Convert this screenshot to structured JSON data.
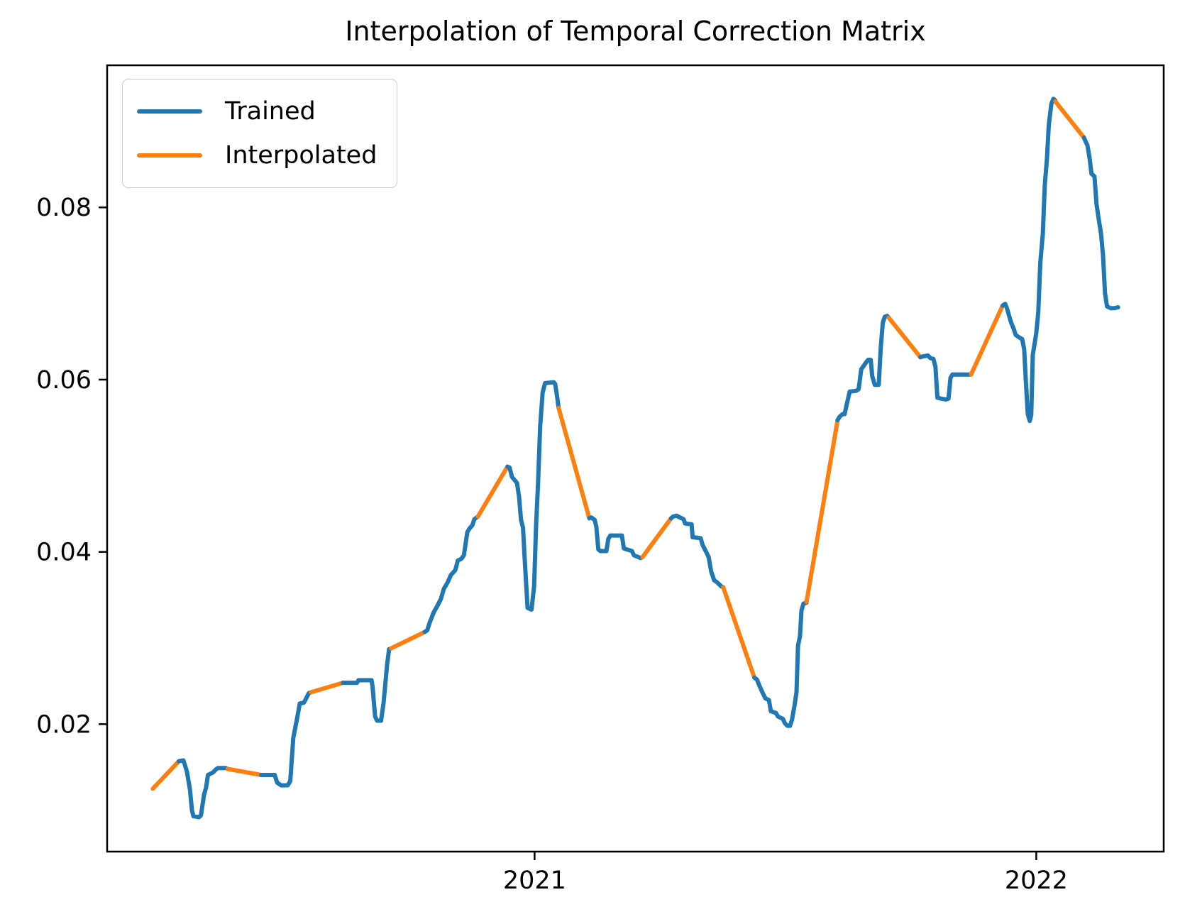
{
  "figure": {
    "title": "Interpolation of Temporal Correction Matrix",
    "background": "#ffffff",
    "spine_color": "#000000",
    "tick_label_color": "#000000"
  },
  "legend": {
    "position": "upper left",
    "items": [
      {
        "label": "Trained",
        "color": "#1f77b4"
      },
      {
        "label": "Interpolated",
        "color": "#ff7f0e"
      }
    ]
  },
  "chart_data": {
    "type": "line",
    "title": "Interpolation of Temporal Correction Matrix",
    "xlabel": "",
    "ylabel": "",
    "grid": false,
    "legend_position": "upper left",
    "xlim": [
      2020.148,
      2022.254
    ],
    "ylim": [
      0.0052,
      0.0965
    ],
    "xticks": {
      "values": [
        2021,
        2022
      ],
      "labels": [
        "2021",
        "2022"
      ]
    },
    "yticks": {
      "values": [
        0.02,
        0.04,
        0.06,
        0.08
      ],
      "labels": [
        "0.02",
        "0.04",
        "0.06",
        "0.08"
      ]
    },
    "series_colors": {
      "Trained": "#1f77b4",
      "Interpolated": "#ff7f0e"
    },
    "line_width": 6,
    "segments": [
      {
        "series": "Interpolated",
        "points": [
          [
            2020.239,
            0.0125
          ],
          [
            2020.291,
            0.0157
          ]
        ]
      },
      {
        "series": "Trained",
        "points": [
          [
            2020.291,
            0.0157
          ],
          [
            2020.3,
            0.0158
          ],
          [
            2020.307,
            0.0145
          ],
          [
            2020.313,
            0.0124
          ],
          [
            2020.317,
            0.01
          ],
          [
            2020.32,
            0.0093
          ],
          [
            2020.331,
            0.0092
          ],
          [
            2020.335,
            0.0094
          ],
          [
            2020.341,
            0.0118
          ],
          [
            2020.345,
            0.0126
          ],
          [
            2020.349,
            0.0141
          ],
          [
            2020.359,
            0.0144
          ],
          [
            2020.366,
            0.0148
          ],
          [
            2020.369,
            0.0149
          ],
          [
            2020.385,
            0.0149
          ],
          [
            2020.388,
            0.0148
          ]
        ]
      },
      {
        "series": "Interpolated",
        "points": [
          [
            2020.388,
            0.0148
          ],
          [
            2020.455,
            0.0141
          ]
        ]
      },
      {
        "series": "Trained",
        "points": [
          [
            2020.455,
            0.0141
          ],
          [
            2020.482,
            0.0141
          ],
          [
            2020.487,
            0.0132
          ],
          [
            2020.495,
            0.0129
          ],
          [
            2020.508,
            0.0129
          ],
          [
            2020.513,
            0.0134
          ],
          [
            2020.519,
            0.0184
          ],
          [
            2020.526,
            0.0205
          ],
          [
            2020.532,
            0.0224
          ],
          [
            2020.54,
            0.0225
          ],
          [
            2020.543,
            0.0228
          ],
          [
            2020.55,
            0.0236
          ],
          [
            2020.554,
            0.0237
          ]
        ]
      },
      {
        "series": "Interpolated",
        "points": [
          [
            2020.554,
            0.0237
          ],
          [
            2020.618,
            0.0248
          ]
        ]
      },
      {
        "series": "Trained",
        "points": [
          [
            2020.618,
            0.0248
          ],
          [
            2020.646,
            0.0248
          ],
          [
            2020.649,
            0.0251
          ],
          [
            2020.675,
            0.0251
          ],
          [
            2020.677,
            0.0244
          ],
          [
            2020.682,
            0.0209
          ],
          [
            2020.686,
            0.0204
          ],
          [
            2020.694,
            0.0204
          ],
          [
            2020.699,
            0.0225
          ],
          [
            2020.706,
            0.0269
          ],
          [
            2020.71,
            0.0287
          ],
          [
            2020.714,
            0.0288
          ]
        ]
      },
      {
        "series": "Interpolated",
        "points": [
          [
            2020.714,
            0.0288
          ],
          [
            2020.781,
            0.0307
          ]
        ]
      },
      {
        "series": "Trained",
        "points": [
          [
            2020.781,
            0.0307
          ],
          [
            2020.786,
            0.0309
          ],
          [
            2020.791,
            0.0318
          ],
          [
            2020.799,
            0.033
          ],
          [
            2020.805,
            0.0336
          ],
          [
            2020.813,
            0.0345
          ],
          [
            2020.819,
            0.0357
          ],
          [
            2020.827,
            0.0365
          ],
          [
            2020.833,
            0.0373
          ],
          [
            2020.842,
            0.0379
          ],
          [
            2020.847,
            0.039
          ],
          [
            2020.854,
            0.0392
          ],
          [
            2020.859,
            0.0396
          ],
          [
            2020.866,
            0.0423
          ],
          [
            2020.87,
            0.0427
          ],
          [
            2020.876,
            0.0431
          ],
          [
            2020.88,
            0.0438
          ],
          [
            2020.887,
            0.0441
          ]
        ]
      },
      {
        "series": "Interpolated",
        "points": [
          [
            2020.887,
            0.0441
          ],
          [
            2020.946,
            0.0499
          ]
        ]
      },
      {
        "series": "Trained",
        "points": [
          [
            2020.946,
            0.0499
          ],
          [
            2020.95,
            0.0498
          ],
          [
            2020.955,
            0.0487
          ],
          [
            2020.965,
            0.048
          ],
          [
            2020.969,
            0.0464
          ],
          [
            2020.973,
            0.0437
          ],
          [
            2020.977,
            0.0428
          ],
          [
            2020.98,
            0.0395
          ],
          [
            2020.986,
            0.0335
          ],
          [
            2020.994,
            0.0333
          ],
          [
            2020.999,
            0.036
          ],
          [
            2021.003,
            0.0431
          ],
          [
            2021.007,
            0.048
          ],
          [
            2021.011,
            0.0545
          ],
          [
            2021.016,
            0.0585
          ],
          [
            2021.021,
            0.0596
          ],
          [
            2021.038,
            0.0597
          ],
          [
            2021.041,
            0.0595
          ],
          [
            2021.045,
            0.058
          ],
          [
            2021.048,
            0.0567
          ]
        ]
      },
      {
        "series": "Interpolated",
        "points": [
          [
            2021.048,
            0.0567
          ],
          [
            2021.109,
            0.0439
          ]
        ]
      },
      {
        "series": "Trained",
        "points": [
          [
            2021.109,
            0.0439
          ],
          [
            2021.113,
            0.044
          ],
          [
            2021.12,
            0.0437
          ],
          [
            2021.123,
            0.0429
          ],
          [
            2021.127,
            0.0403
          ],
          [
            2021.131,
            0.0401
          ],
          [
            2021.143,
            0.0401
          ],
          [
            2021.147,
            0.0415
          ],
          [
            2021.151,
            0.0419
          ],
          [
            2021.174,
            0.0419
          ],
          [
            2021.178,
            0.0404
          ],
          [
            2021.194,
            0.0401
          ],
          [
            2021.198,
            0.0396
          ],
          [
            2021.211,
            0.0393
          ],
          [
            2021.215,
            0.0394
          ]
        ]
      },
      {
        "series": "Interpolated",
        "points": [
          [
            2021.215,
            0.0394
          ],
          [
            2021.272,
            0.0439
          ]
        ]
      },
      {
        "series": "Trained",
        "points": [
          [
            2021.272,
            0.0439
          ],
          [
            2021.276,
            0.0441
          ],
          [
            2021.283,
            0.0442
          ],
          [
            2021.293,
            0.0439
          ],
          [
            2021.297,
            0.0438
          ],
          [
            2021.3,
            0.0433
          ],
          [
            2021.313,
            0.0432
          ],
          [
            2021.315,
            0.0417
          ],
          [
            2021.331,
            0.0416
          ],
          [
            2021.335,
            0.0408
          ],
          [
            2021.342,
            0.04
          ],
          [
            2021.347,
            0.0394
          ],
          [
            2021.352,
            0.0377
          ],
          [
            2021.358,
            0.0367
          ],
          [
            2021.363,
            0.0365
          ],
          [
            2021.372,
            0.036
          ],
          [
            2021.376,
            0.0359
          ]
        ]
      },
      {
        "series": "Interpolated",
        "points": [
          [
            2021.376,
            0.0359
          ],
          [
            2021.438,
            0.0254
          ]
        ]
      },
      {
        "series": "Trained",
        "points": [
          [
            2021.438,
            0.0254
          ],
          [
            2021.443,
            0.0252
          ],
          [
            2021.448,
            0.0245
          ],
          [
            2021.454,
            0.0237
          ],
          [
            2021.46,
            0.023
          ],
          [
            2021.467,
            0.0228
          ],
          [
            2021.471,
            0.0215
          ],
          [
            2021.481,
            0.0213
          ],
          [
            2021.485,
            0.0209
          ],
          [
            2021.495,
            0.0206
          ],
          [
            2021.499,
            0.0201
          ],
          [
            2021.504,
            0.0198
          ],
          [
            2021.509,
            0.0198
          ],
          [
            2021.513,
            0.0205
          ],
          [
            2021.518,
            0.0221
          ],
          [
            2021.522,
            0.0237
          ],
          [
            2021.525,
            0.0291
          ],
          [
            2021.529,
            0.0302
          ],
          [
            2021.532,
            0.0332
          ],
          [
            2021.536,
            0.034
          ],
          [
            2021.542,
            0.0341
          ]
        ]
      },
      {
        "series": "Interpolated",
        "points": [
          [
            2021.542,
            0.0342
          ],
          [
            2021.604,
            0.0553
          ]
        ]
      },
      {
        "series": "Trained",
        "points": [
          [
            2021.604,
            0.0553
          ],
          [
            2021.608,
            0.0557
          ],
          [
            2021.614,
            0.056
          ],
          [
            2021.618,
            0.056
          ],
          [
            2021.622,
            0.0571
          ],
          [
            2021.628,
            0.0586
          ],
          [
            2021.641,
            0.0587
          ],
          [
            2021.646,
            0.0589
          ],
          [
            2021.651,
            0.0612
          ],
          [
            2021.656,
            0.0616
          ],
          [
            2021.662,
            0.0621
          ],
          [
            2021.665,
            0.0623
          ],
          [
            2021.67,
            0.0623
          ],
          [
            2021.673,
            0.0604
          ],
          [
            2021.678,
            0.0594
          ],
          [
            2021.686,
            0.0594
          ],
          [
            2021.69,
            0.0637
          ],
          [
            2021.694,
            0.0666
          ],
          [
            2021.698,
            0.0673
          ],
          [
            2021.703,
            0.0674
          ],
          [
            2021.706,
            0.0672
          ]
        ]
      },
      {
        "series": "Interpolated",
        "points": [
          [
            2021.706,
            0.0672
          ],
          [
            2021.769,
            0.0626
          ]
        ]
      },
      {
        "series": "Trained",
        "points": [
          [
            2021.769,
            0.0626
          ],
          [
            2021.774,
            0.0627
          ],
          [
            2021.784,
            0.0628
          ],
          [
            2021.789,
            0.0625
          ],
          [
            2021.795,
            0.0624
          ],
          [
            2021.799,
            0.0615
          ],
          [
            2021.803,
            0.0579
          ],
          [
            2021.81,
            0.0578
          ],
          [
            2021.82,
            0.0577
          ],
          [
            2021.825,
            0.0578
          ],
          [
            2021.829,
            0.0602
          ],
          [
            2021.833,
            0.0606
          ],
          [
            2021.844,
            0.0606
          ],
          [
            2021.859,
            0.0606
          ],
          [
            2021.87,
            0.0606
          ]
        ]
      },
      {
        "series": "Interpolated",
        "points": [
          [
            2021.87,
            0.0606
          ],
          [
            2021.933,
            0.0686
          ]
        ]
      },
      {
        "series": "Trained",
        "points": [
          [
            2021.933,
            0.0686
          ],
          [
            2021.938,
            0.0688
          ],
          [
            2021.942,
            0.0682
          ],
          [
            2021.946,
            0.0674
          ],
          [
            2021.95,
            0.0666
          ],
          [
            2021.955,
            0.0659
          ],
          [
            2021.959,
            0.0652
          ],
          [
            2021.966,
            0.0649
          ],
          [
            2021.972,
            0.0647
          ],
          [
            2021.976,
            0.0635
          ],
          [
            2021.979,
            0.06
          ],
          [
            2021.983,
            0.056
          ],
          [
            2021.987,
            0.0552
          ],
          [
            2021.99,
            0.0559
          ],
          [
            2021.993,
            0.0629
          ],
          [
            2021.997,
            0.0643
          ],
          [
            2022.0,
            0.0654
          ],
          [
            2022.004,
            0.0678
          ],
          [
            2022.008,
            0.0736
          ],
          [
            2022.013,
            0.0769
          ],
          [
            2022.017,
            0.0826
          ],
          [
            2022.021,
            0.0855
          ],
          [
            2022.025,
            0.0896
          ],
          [
            2022.03,
            0.092
          ],
          [
            2022.034,
            0.0926
          ],
          [
            2022.038,
            0.0924
          ]
        ]
      },
      {
        "series": "Interpolated",
        "points": [
          [
            2022.038,
            0.0923
          ],
          [
            2022.095,
            0.0881
          ]
        ]
      },
      {
        "series": "Trained",
        "points": [
          [
            2022.095,
            0.0881
          ],
          [
            2022.098,
            0.0877
          ],
          [
            2022.102,
            0.0872
          ],
          [
            2022.106,
            0.0858
          ],
          [
            2022.11,
            0.0839
          ],
          [
            2022.116,
            0.0836
          ],
          [
            2022.12,
            0.0804
          ],
          [
            2022.124,
            0.0788
          ],
          [
            2022.129,
            0.077
          ],
          [
            2022.133,
            0.0745
          ],
          [
            2022.137,
            0.07
          ],
          [
            2022.141,
            0.0685
          ],
          [
            2022.148,
            0.0683
          ],
          [
            2022.156,
            0.0683
          ],
          [
            2022.163,
            0.0684
          ]
        ]
      }
    ]
  }
}
